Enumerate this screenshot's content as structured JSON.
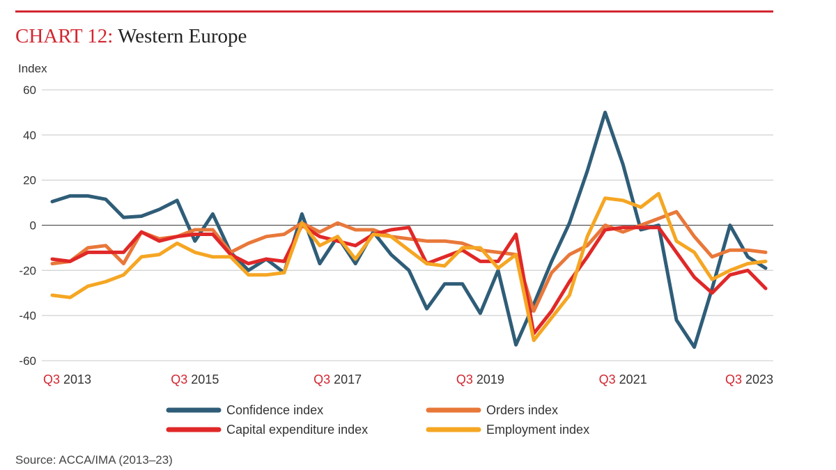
{
  "header": {
    "prefix": "CHART 12:",
    "title": "Western Europe"
  },
  "source": "Source: ACCA/IMA (2013–23)",
  "colors": {
    "accent": "#d22630",
    "Confidence index": "#2f5d78",
    "Orders index": "#e8783a",
    "Capital expenditure index": "#e02828",
    "Employment index": "#f5a623"
  },
  "chart_data": {
    "type": "line",
    "ylabel": "Index",
    "ylim": [
      -60,
      60
    ],
    "yticks": [
      60,
      40,
      20,
      0,
      -20,
      -40,
      -60
    ],
    "grid": true,
    "legend_placement": "bottom",
    "x_start": "Q3 2013",
    "x_end": "Q3 2023",
    "x_frequency": "quarterly",
    "xtick_labels": [
      {
        "q": "Q3",
        "year": "2013",
        "index": 0
      },
      {
        "q": "Q3",
        "year": "2015",
        "index": 8
      },
      {
        "q": "Q3",
        "year": "2017",
        "index": 16
      },
      {
        "q": "Q3",
        "year": "2019",
        "index": 24
      },
      {
        "q": "Q3",
        "year": "2021",
        "index": 32
      },
      {
        "q": "Q3",
        "year": "2023",
        "index": 40
      }
    ],
    "series": [
      {
        "name": "Confidence index",
        "values": [
          10.5,
          13,
          13,
          11.5,
          3.5,
          4,
          7,
          11,
          -7,
          5,
          -12,
          -20,
          -15,
          -21,
          5,
          -17,
          -5,
          -17,
          -3,
          -13,
          -20,
          -37,
          -26,
          -26,
          -39,
          -20,
          -53,
          -35,
          -16,
          1,
          24,
          50,
          27,
          -2,
          0,
          -42,
          -54,
          -28,
          0,
          -14,
          -19
        ]
      },
      {
        "name": "Orders index",
        "values": [
          -17,
          -16,
          -10,
          -9,
          -17,
          -3,
          -6,
          -5,
          -2,
          -2,
          -12,
          -8,
          -5,
          -4,
          1,
          -3,
          1,
          -2,
          -2,
          -5,
          -6,
          -7,
          -7,
          -8,
          -11,
          -12,
          -13,
          -38,
          -21,
          -13,
          -9,
          0,
          -3,
          0,
          3,
          6,
          -5,
          -14,
          -11,
          -11,
          -12
        ]
      },
      {
        "name": "Capital expenditure index",
        "values": [
          -15,
          -16,
          -12,
          -12,
          -12,
          -3,
          -7,
          -5,
          -4,
          -4,
          -13,
          -17,
          -15,
          -16,
          0,
          -5,
          -7,
          -9,
          -4,
          -2,
          -1,
          -17,
          -14,
          -11,
          -16,
          -16,
          -4,
          -48,
          -38,
          -25,
          -14,
          -2,
          -1,
          -1,
          -1,
          -12,
          -23,
          -30,
          -22,
          -20,
          -28
        ]
      },
      {
        "name": "Employment index",
        "values": [
          -31,
          -32,
          -27,
          -25,
          -22,
          -14,
          -13,
          -8,
          -12,
          -14,
          -14,
          -22,
          -22,
          -21,
          1,
          -9,
          -5,
          -15,
          -4,
          -5,
          -11,
          -17,
          -18,
          -10,
          -10,
          -19,
          -13,
          -51,
          -41,
          -31,
          -5,
          12,
          11,
          8,
          14,
          -7,
          -12,
          -24,
          -20,
          -17,
          -16
        ]
      }
    ],
    "legend_order": [
      "Confidence index",
      "Orders index",
      "Capital expenditure index",
      "Employment index"
    ]
  }
}
